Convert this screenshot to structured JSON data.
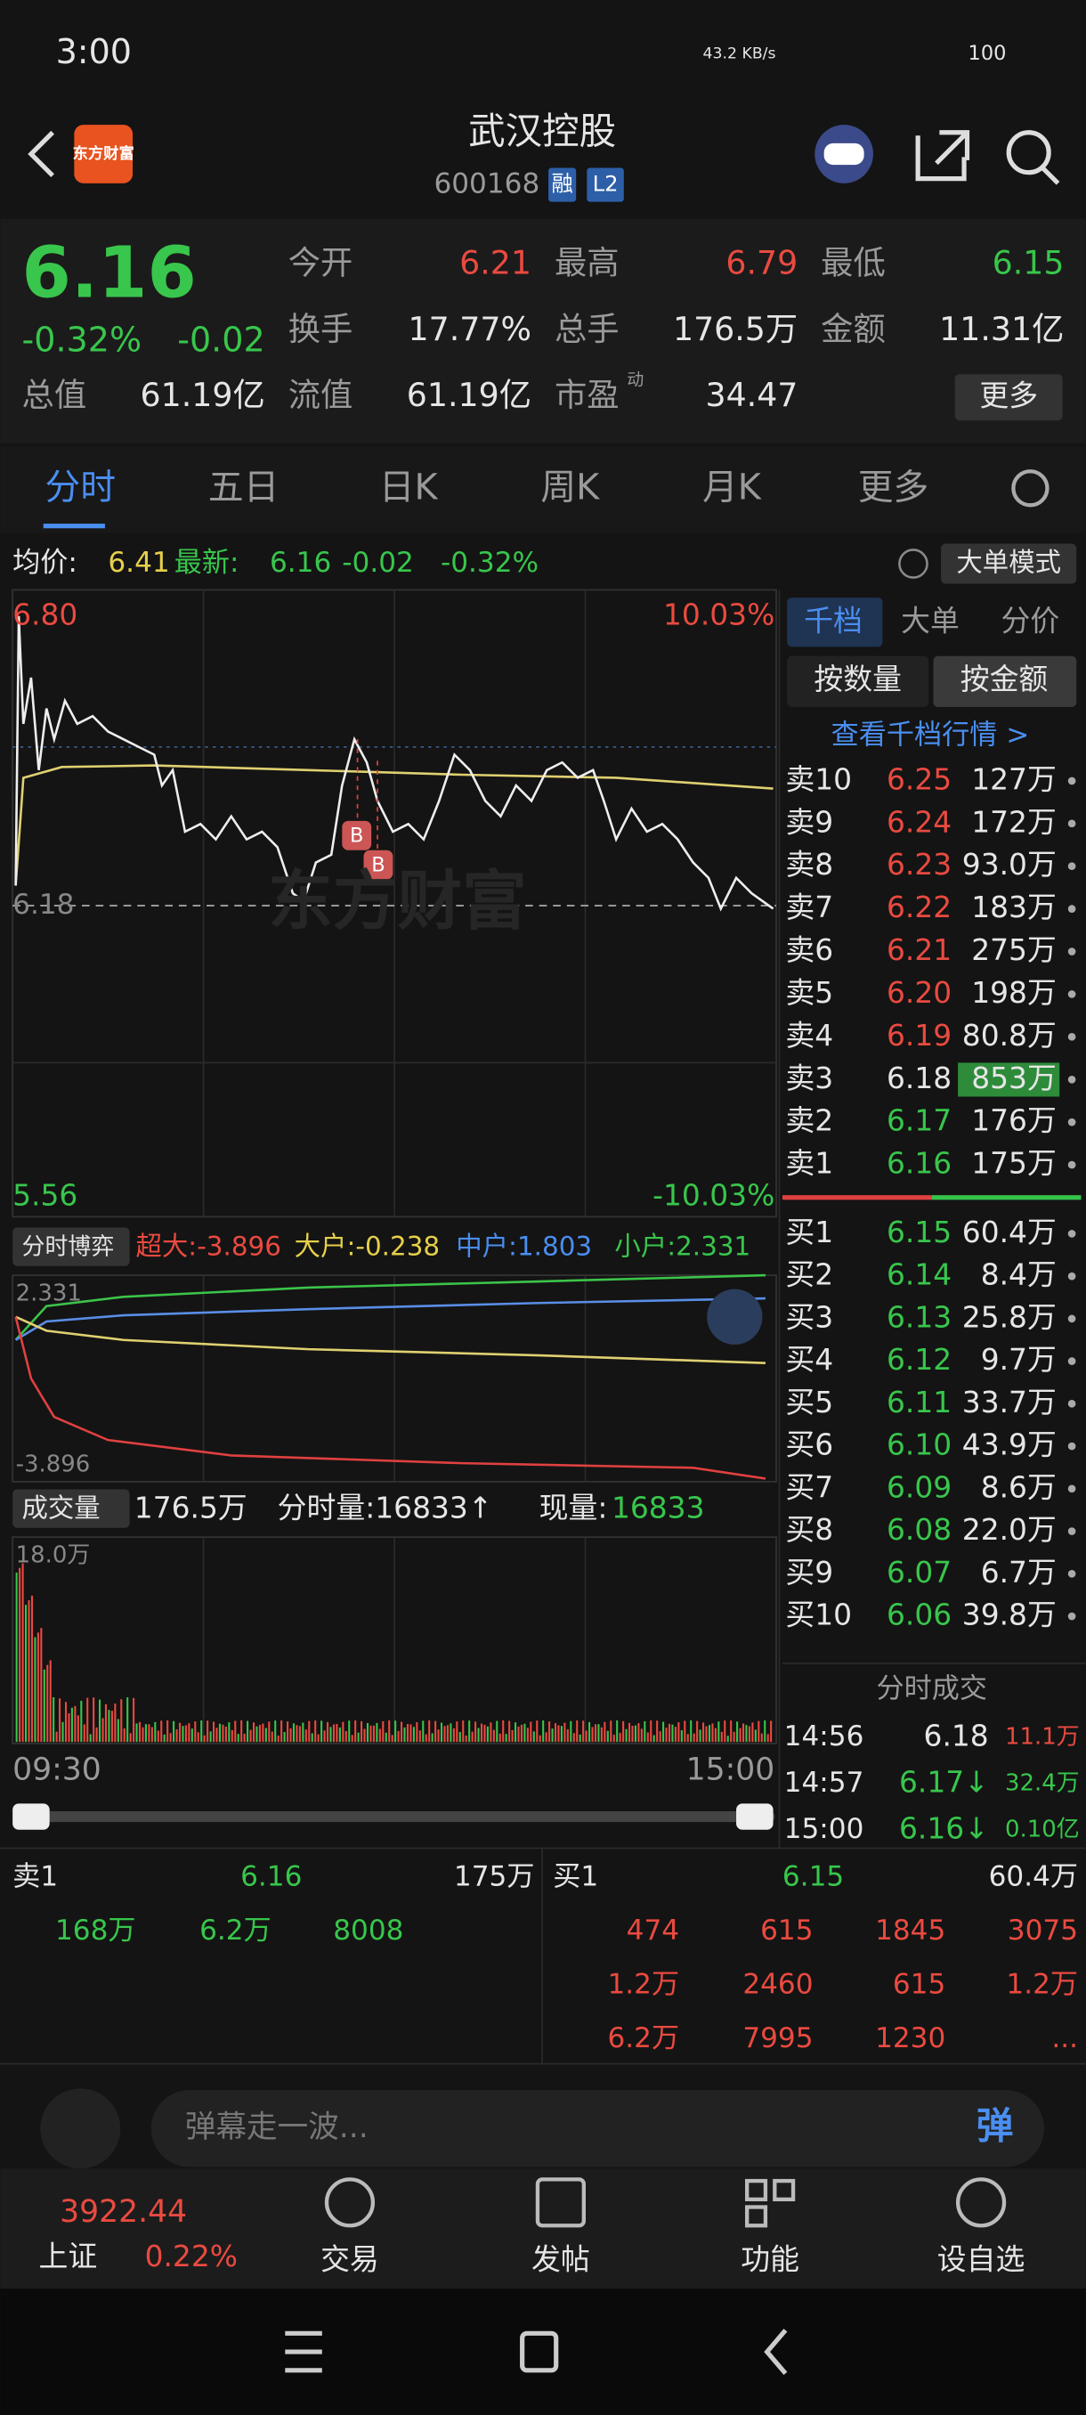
{
  "status": {
    "time": "3:00",
    "speed": "43.2 KB/s",
    "battery": "100"
  },
  "header": {
    "logo": "东方财富",
    "title": "武汉控股",
    "code": "600168",
    "tags": [
      "融",
      "L2"
    ]
  },
  "quote": {
    "price": "6.16",
    "change_pct": "-0.32%",
    "change": "-0.02",
    "fields": [
      {
        "label": "今开",
        "value": "6.21"
      },
      {
        "label": "最高",
        "value": "6.79"
      },
      {
        "label": "最低",
        "value": "6.15"
      },
      {
        "label": "换手",
        "value": "17.77%"
      },
      {
        "label": "总手",
        "value": "176.5万"
      },
      {
        "label": "金额",
        "value": "11.31亿"
      },
      {
        "label": "总值",
        "value": "61.19亿"
      },
      {
        "label": "流值",
        "value": "61.19亿"
      },
      {
        "label": "市盈",
        "value": "34.47",
        "sup": "动"
      }
    ],
    "more": "更多"
  },
  "tabs": [
    "分时",
    "五日",
    "日K",
    "周K",
    "月K",
    "更多"
  ],
  "info": {
    "avg_label": "均价:",
    "avg": "6.41",
    "latest_label": "最新:",
    "latest": "6.16",
    "change": "-0.02",
    "change_pct": "-0.32%",
    "mode": "大单模式"
  },
  "chart": {
    "high": "6.80",
    "high_pct": "10.03%",
    "preclose": "6.18",
    "low": "5.56",
    "low_pct": "-10.03%",
    "watermark": "东方财富"
  },
  "flows": {
    "label": "分时博弈",
    "items": [
      "超大:-3.896",
      "大户:-0.238",
      "中户:1.803",
      "小户:2.331"
    ],
    "top": "2.331",
    "bottom": "-3.896"
  },
  "volume": {
    "label": "成交量",
    "total": "176.5万",
    "tick_label": "分时量:16833↑",
    "now_label": "现量:",
    "now": "16833",
    "max": "18.0万",
    "start": "09:30",
    "end": "15:00"
  },
  "panel": {
    "tabs": [
      "千档",
      "大单",
      "分价"
    ],
    "buttons": [
      "按数量",
      "按金额"
    ],
    "link": "查看千档行情 >",
    "asks": [
      [
        "卖10",
        "6.25",
        "127万"
      ],
      [
        "卖9",
        "6.24",
        "172万"
      ],
      [
        "卖8",
        "6.23",
        "93.0万"
      ],
      [
        "卖7",
        "6.22",
        "183万"
      ],
      [
        "卖6",
        "6.21",
        "275万"
      ],
      [
        "卖5",
        "6.20",
        "198万"
      ],
      [
        "卖4",
        "6.19",
        "80.8万"
      ],
      [
        "卖3",
        "6.18",
        "853万"
      ],
      [
        "卖2",
        "6.17",
        "176万"
      ],
      [
        "卖1",
        "6.16",
        "175万"
      ]
    ],
    "bids": [
      [
        "买1",
        "6.15",
        "60.4万"
      ],
      [
        "买2",
        "6.14",
        "8.4万"
      ],
      [
        "买3",
        "6.13",
        "25.8万"
      ],
      [
        "买4",
        "6.12",
        "9.7万"
      ],
      [
        "买5",
        "6.11",
        "33.7万"
      ],
      [
        "买6",
        "6.10",
        "43.9万"
      ],
      [
        "买7",
        "6.09",
        "8.6万"
      ],
      [
        "买8",
        "6.08",
        "22.0万"
      ],
      [
        "买9",
        "6.07",
        "6.7万"
      ],
      [
        "买10",
        "6.06",
        "39.8万"
      ]
    ],
    "trades_title": "分时成交",
    "trades": [
      [
        "14:56",
        "6.18",
        "11.1万"
      ],
      [
        "14:57",
        "6.17↓",
        "32.4万"
      ],
      [
        "15:00",
        "6.16↓",
        "0.10亿"
      ]
    ]
  },
  "bottom": {
    "ask": [
      "卖1",
      "6.16",
      "175万"
    ],
    "ask_detail": [
      "168万",
      "6.2万",
      "8008"
    ],
    "bid": [
      "买1",
      "6.15",
      "60.4万"
    ],
    "bid_detail": [
      [
        "474",
        "615",
        "1845",
        "3075"
      ],
      [
        "1.2万",
        "2460",
        "615",
        "1.2万"
      ],
      [
        "6.2万",
        "7995",
        "1230",
        "..."
      ]
    ]
  },
  "comment": {
    "placeholder": "弹幕走一波...",
    "button": "弹"
  },
  "nav": {
    "index": "3922.44",
    "index_name": "上证",
    "index_pct": "0.22%",
    "items": [
      "交易",
      "发帖",
      "功能",
      "设自选"
    ]
  }
}
